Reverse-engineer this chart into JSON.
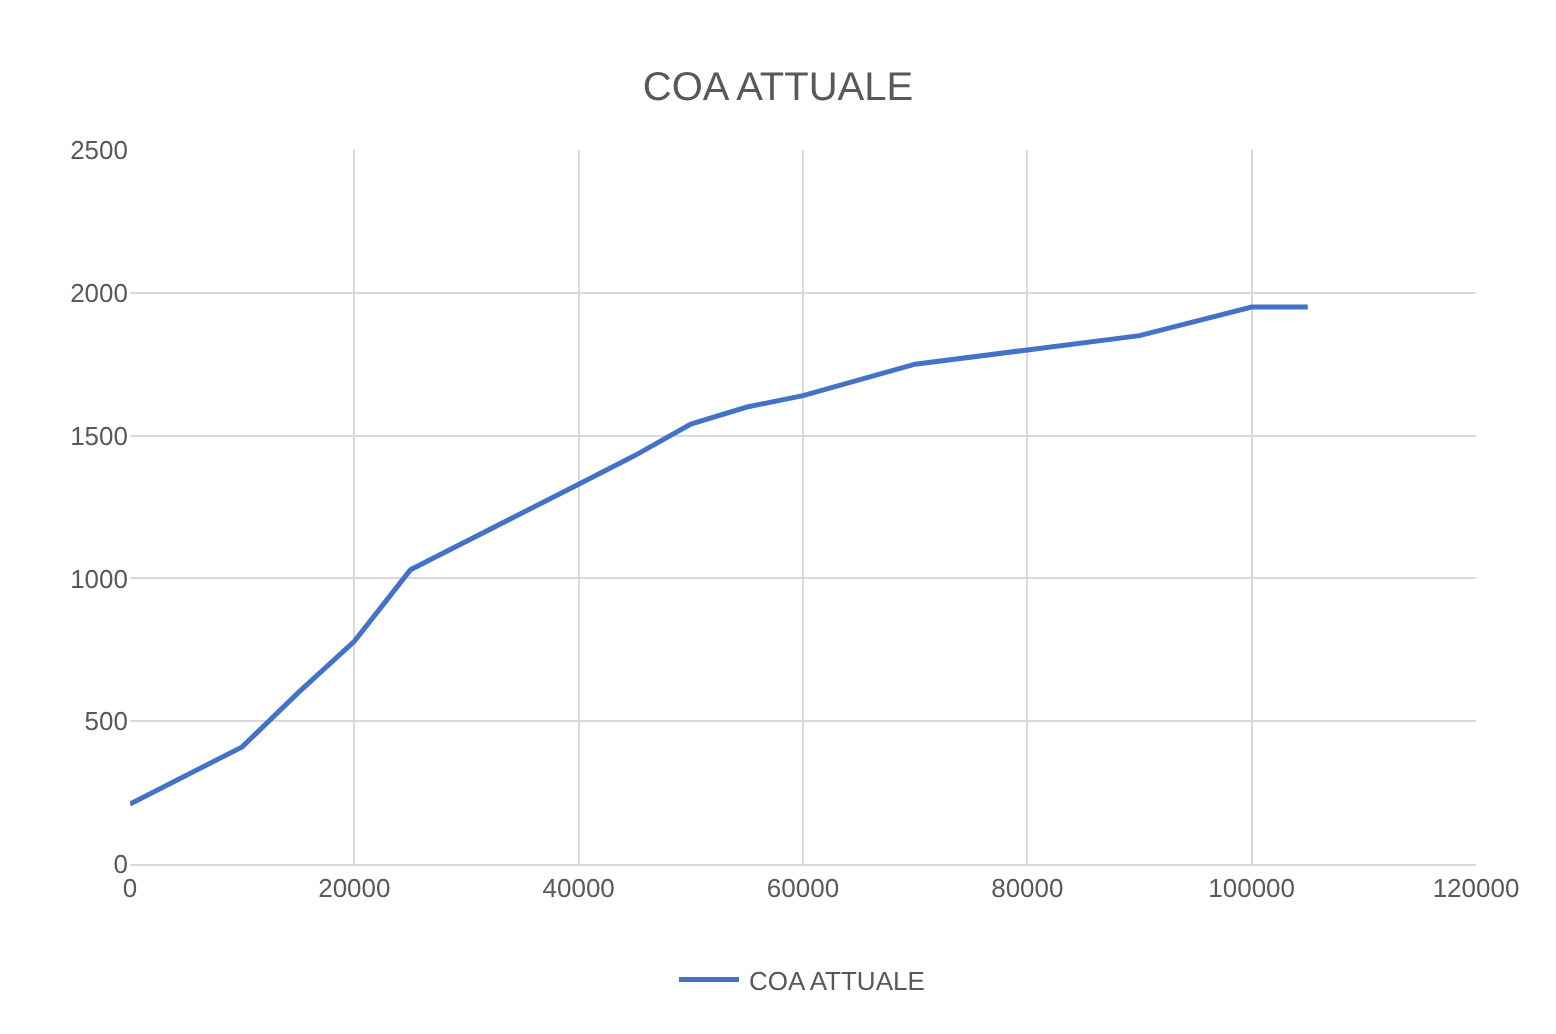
{
  "chart_data": {
    "type": "line",
    "title": "COA ATTUALE",
    "x": [
      0,
      10000,
      15000,
      20000,
      25000,
      40000,
      45000,
      50000,
      55000,
      60000,
      70000,
      80000,
      90000,
      100000,
      105000
    ],
    "series": [
      {
        "name": "COA ATTUALE",
        "color": "#4472c4",
        "values": [
          210,
          410,
          600,
          780,
          1030,
          1330,
          1430,
          1540,
          1600,
          1640,
          1750,
          1800,
          1850,
          1950,
          1950
        ]
      }
    ],
    "xlim": [
      0,
      120000
    ],
    "xticks": [
      0,
      20000,
      40000,
      60000,
      80000,
      100000,
      120000
    ],
    "ylim": [
      0,
      2500
    ],
    "yticks": [
      0,
      500,
      1000,
      1500,
      2000,
      2500
    ],
    "grid": true,
    "legend": "bottom",
    "marker": "none",
    "line_style": "solid"
  }
}
